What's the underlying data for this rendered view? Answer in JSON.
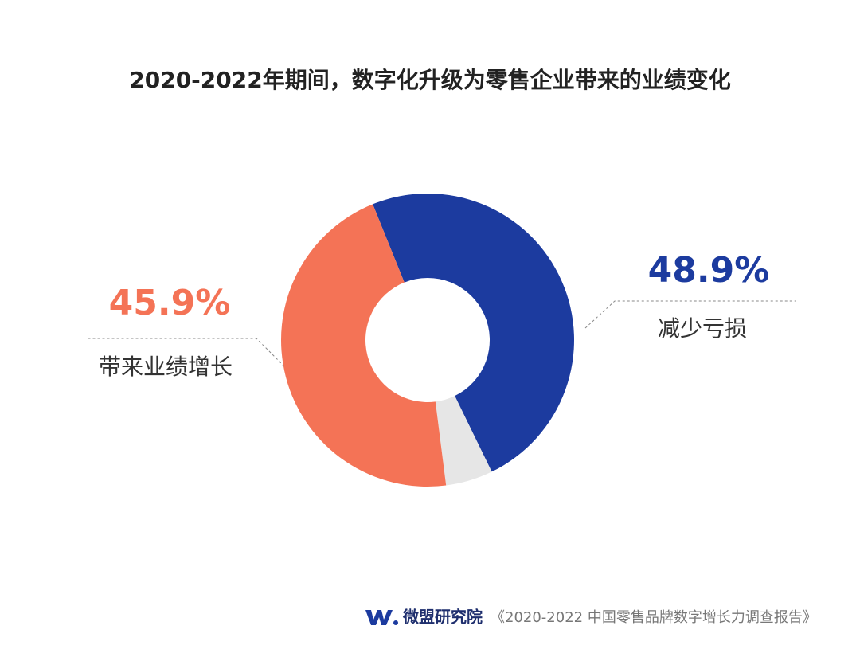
{
  "chart_data": {
    "type": "pie",
    "donut": true,
    "title": "2020-2022年期间，数字化升级为零售企业带来的业绩变化",
    "categories": [
      "减少亏损",
      null,
      "带来业绩增长"
    ],
    "values": [
      48.9,
      5.2,
      45.9
    ],
    "value_labels": [
      "48.9%",
      null,
      "45.9%"
    ],
    "colors": [
      "#1c3b9f",
      "#e6e6e6",
      "#f47356"
    ]
  },
  "footer": {
    "brand": "微盟研究院",
    "source": "《2020-2022 中国零售品牌数字增长力调查报告》"
  }
}
